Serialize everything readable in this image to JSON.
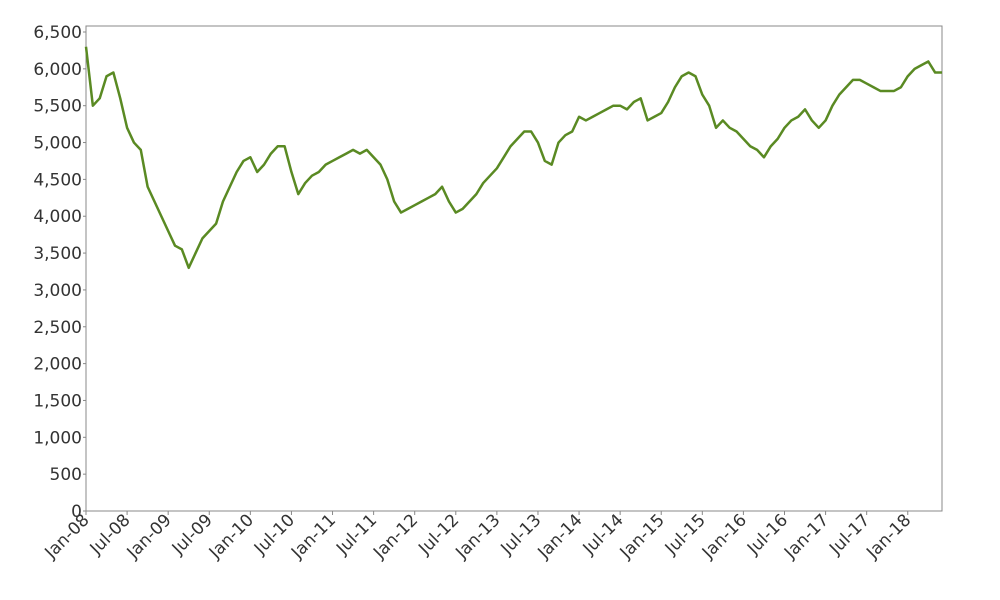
{
  "chart_data": {
    "type": "line",
    "x": [
      "2008-01",
      "2008-02",
      "2008-03",
      "2008-04",
      "2008-05",
      "2008-06",
      "2008-07",
      "2008-08",
      "2008-09",
      "2008-10",
      "2008-11",
      "2008-12",
      "2009-01",
      "2009-02",
      "2009-03",
      "2009-04",
      "2009-05",
      "2009-06",
      "2009-07",
      "2009-08",
      "2009-09",
      "2009-10",
      "2009-11",
      "2009-12",
      "2010-01",
      "2010-02",
      "2010-03",
      "2010-04",
      "2010-05",
      "2010-06",
      "2010-07",
      "2010-08",
      "2010-09",
      "2010-10",
      "2010-11",
      "2010-12",
      "2011-01",
      "2011-02",
      "2011-03",
      "2011-04",
      "2011-05",
      "2011-06",
      "2011-07",
      "2011-08",
      "2011-09",
      "2011-10",
      "2011-11",
      "2011-12",
      "2012-01",
      "2012-02",
      "2012-03",
      "2012-04",
      "2012-05",
      "2012-06",
      "2012-07",
      "2012-08",
      "2012-09",
      "2012-10",
      "2012-11",
      "2012-12",
      "2013-01",
      "2013-02",
      "2013-03",
      "2013-04",
      "2013-05",
      "2013-06",
      "2013-07",
      "2013-08",
      "2013-09",
      "2013-10",
      "2013-11",
      "2013-12",
      "2014-01",
      "2014-02",
      "2014-03",
      "2014-04",
      "2014-05",
      "2014-06",
      "2014-07",
      "2014-08",
      "2014-09",
      "2014-10",
      "2014-11",
      "2014-12",
      "2015-01",
      "2015-02",
      "2015-03",
      "2015-04",
      "2015-05",
      "2015-06",
      "2015-07",
      "2015-08",
      "2015-09",
      "2015-10",
      "2015-11",
      "2015-12",
      "2016-01",
      "2016-02",
      "2016-03",
      "2016-04",
      "2016-05",
      "2016-06",
      "2016-07",
      "2016-08",
      "2016-09",
      "2016-10",
      "2016-11",
      "2016-12",
      "2017-01",
      "2017-02",
      "2017-03",
      "2017-04",
      "2017-05",
      "2017-06",
      "2017-07",
      "2017-08",
      "2017-09",
      "2017-10",
      "2017-11",
      "2017-12",
      "2018-01",
      "2018-02",
      "2018-03",
      "2018-04",
      "2018-05",
      "2018-06"
    ],
    "series": [
      {
        "color": "#5a8a23",
        "values": [
          6300,
          5500,
          5600,
          5900,
          5950,
          5600,
          5200,
          5000,
          4900,
          4400,
          4200,
          4000,
          3800,
          3600,
          3550,
          3300,
          3500,
          3700,
          3800,
          3900,
          4200,
          4400,
          4600,
          4750,
          4800,
          4600,
          4700,
          4850,
          4950,
          4950,
          4600,
          4300,
          4450,
          4550,
          4600,
          4700,
          4750,
          4800,
          4850,
          4900,
          4850,
          4900,
          4800,
          4700,
          4500,
          4200,
          4050,
          4100,
          4150,
          4200,
          4250,
          4300,
          4400,
          4200,
          4050,
          4100,
          4200,
          4300,
          4450,
          4550,
          4650,
          4800,
          4950,
          5050,
          5150,
          5150,
          5000,
          4750,
          4700,
          5000,
          5100,
          5150,
          5350,
          5300,
          5350,
          5400,
          5450,
          5500,
          5500,
          5450,
          5550,
          5600,
          5300,
          5350,
          5400,
          5550,
          5750,
          5900,
          5950,
          5900,
          5650,
          5500,
          5200,
          5300,
          5200,
          5150,
          5050,
          4950,
          4900,
          4800,
          4950,
          5050,
          5200,
          5300,
          5350,
          5450,
          5300,
          5200,
          5300,
          5500,
          5650,
          5750,
          5850,
          5850,
          5800,
          5750,
          5700,
          5700,
          5700,
          5750,
          5900,
          6000,
          6050,
          6100,
          5950,
          5950
        ]
      }
    ],
    "xlim": [
      "2008-01",
      "2018-06"
    ],
    "xticks": [
      {
        "value": "2008-01",
        "label": "Jan-08"
      },
      {
        "value": "2008-07",
        "label": "Jul-08"
      },
      {
        "value": "2009-01",
        "label": "Jan-09"
      },
      {
        "value": "2009-07",
        "label": "Jul-09"
      },
      {
        "value": "2010-01",
        "label": "Jan-10"
      },
      {
        "value": "2010-07",
        "label": "Jul-10"
      },
      {
        "value": "2011-01",
        "label": "Jan-11"
      },
      {
        "value": "2011-07",
        "label": "Jul-11"
      },
      {
        "value": "2012-01",
        "label": "Jan-12"
      },
      {
        "value": "2012-07",
        "label": "Jul-12"
      },
      {
        "value": "2013-01",
        "label": "Jan-13"
      },
      {
        "value": "2013-07",
        "label": "Jul-13"
      },
      {
        "value": "2014-01",
        "label": "Jan-14"
      },
      {
        "value": "2014-07",
        "label": "Jul-14"
      },
      {
        "value": "2015-01",
        "label": "Jan-15"
      },
      {
        "value": "2015-07",
        "label": "Jul-15"
      },
      {
        "value": "2016-01",
        "label": "Jan-16"
      },
      {
        "value": "2016-07",
        "label": "Jul-16"
      },
      {
        "value": "2017-01",
        "label": "Jan-17"
      },
      {
        "value": "2017-07",
        "label": "Jul-17"
      },
      {
        "value": "2018-01",
        "label": "Jan-18"
      }
    ],
    "ylim": [
      0,
      6500
    ],
    "yticks": [
      0,
      500,
      {
        "value": 1000,
        "label": "1,000"
      },
      {
        "value": 1500,
        "label": "1,500"
      },
      {
        "value": 2000,
        "label": "2,000"
      },
      {
        "value": 2500,
        "label": "2,500"
      },
      {
        "value": 3000,
        "label": "3,000"
      },
      {
        "value": 3500,
        "label": "3,500"
      },
      {
        "value": 4000,
        "label": "4,000"
      },
      {
        "value": 4500,
        "label": "4,500"
      },
      {
        "value": 5000,
        "label": "5,000"
      },
      {
        "value": 5500,
        "label": "5,500"
      },
      {
        "value": 6000,
        "label": "6,000"
      },
      {
        "value": 6500,
        "label": "6,500"
      }
    ]
  }
}
